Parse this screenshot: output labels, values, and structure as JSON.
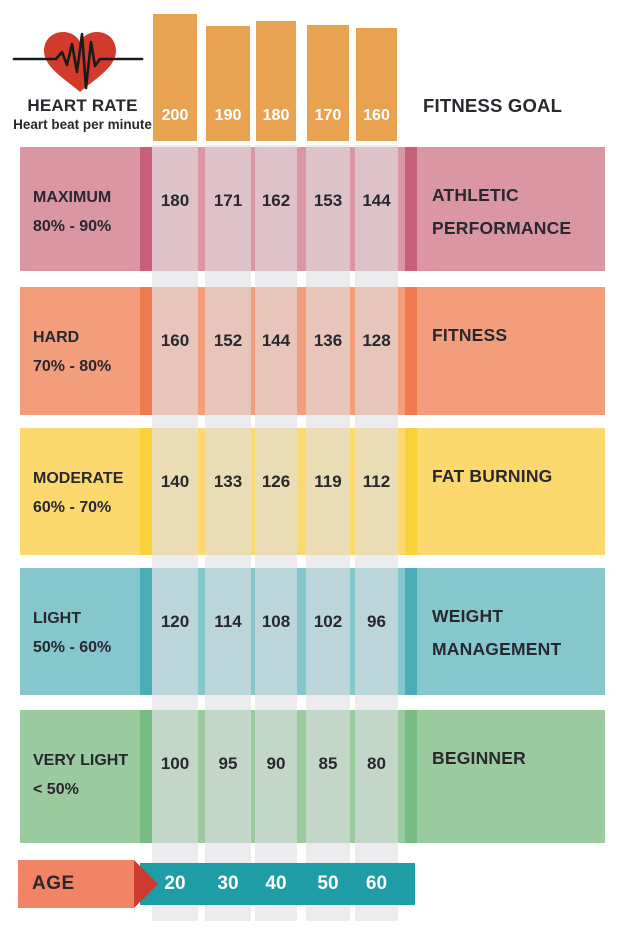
{
  "header": {
    "title": "HEART RATE",
    "subtitle": "Heart beat per minute",
    "right_title": "FITNESS GOAL",
    "bpm_scale": [
      "200",
      "190",
      "180",
      "170",
      "160"
    ]
  },
  "age_axis": {
    "label": "AGE",
    "values": [
      "20",
      "30",
      "40",
      "50",
      "60"
    ]
  },
  "zones": [
    {
      "label": "MAXIMUM",
      "range": "80% - 90%",
      "values": [
        "180",
        "171",
        "162",
        "153",
        "144"
      ],
      "goal": "ATHLETIC PERFORMANCE",
      "base": "#db96a4",
      "stripe": "#c6607a"
    },
    {
      "label": "HARD",
      "range": "70% - 80%",
      "values": [
        "160",
        "152",
        "144",
        "136",
        "128"
      ],
      "goal": "FITNESS",
      "base": "#f29e7c",
      "stripe": "#ee7b4f"
    },
    {
      "label": "MODERATE",
      "range": "60% - 70%",
      "values": [
        "140",
        "133",
        "126",
        "119",
        "112"
      ],
      "goal": "FAT BURNING",
      "base": "#fbd96e",
      "stripe": "#fbd139"
    },
    {
      "label": "LIGHT",
      "range": "50% - 60%",
      "values": [
        "120",
        "114",
        "108",
        "102",
        "96"
      ],
      "goal": "WEIGHT MANAGEMENT",
      "base": "#85c7cc",
      "stripe": "#4badb6"
    },
    {
      "label": "VERY LIGHT",
      "range": "< 50%",
      "values": [
        "100",
        "95",
        "90",
        "85",
        "80"
      ],
      "goal": "BEGINNER",
      "base": "#9aca9e",
      "stripe": "#79bc81"
    }
  ],
  "palette": {
    "bar_orange": "#e8a251",
    "age_teal": "#1e9da7",
    "age_salmon": "#f08465",
    "age_arrow_red": "#cc3b2d",
    "heart_red": "#d23b2c",
    "text_dark": "#28282e",
    "text_white": "#ffffff"
  },
  "chart_data": {
    "type": "table",
    "title": "HEART RATE",
    "subtitle": "Heart beat per minute",
    "x_axis_label": "AGE",
    "x_categories": [
      20,
      30,
      40,
      50,
      60
    ],
    "max_heart_rate_by_age": [
      200,
      190,
      180,
      170,
      160
    ],
    "legend_right": "FITNESS GOAL",
    "rows": [
      {
        "zone": "MAXIMUM",
        "intensity": "80% - 90%",
        "goal": "ATHLETIC PERFORMANCE",
        "bpm": [
          180,
          171,
          162,
          153,
          144
        ]
      },
      {
        "zone": "HARD",
        "intensity": "70% - 80%",
        "goal": "FITNESS",
        "bpm": [
          160,
          152,
          144,
          136,
          128
        ]
      },
      {
        "zone": "MODERATE",
        "intensity": "60% - 70%",
        "goal": "FAT BURNING",
        "bpm": [
          140,
          133,
          126,
          119,
          112
        ]
      },
      {
        "zone": "LIGHT",
        "intensity": "50% - 60%",
        "goal": "WEIGHT MANAGEMENT",
        "bpm": [
          120,
          114,
          108,
          102,
          96
        ]
      },
      {
        "zone": "VERY LIGHT",
        "intensity": "< 50%",
        "goal": "BEGINNER",
        "bpm": [
          100,
          95,
          90,
          85,
          80
        ]
      }
    ]
  }
}
